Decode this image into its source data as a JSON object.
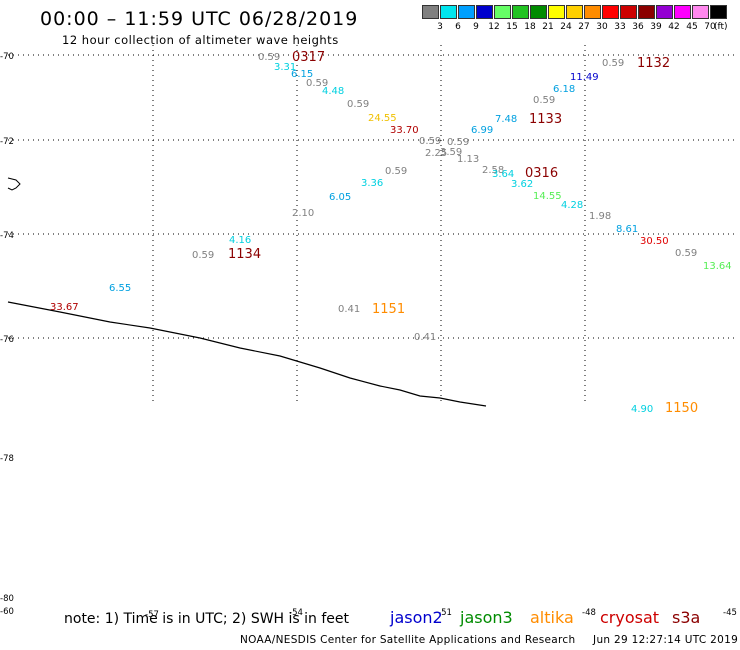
{
  "header": {
    "title": "00:00 – 11:59 UTC 06/28/2019",
    "subtitle": "12 hour collection of altimeter wave heights"
  },
  "legend": {
    "unit": "(ft)",
    "bins": [
      {
        "label": "3",
        "color": "#808080"
      },
      {
        "label": "6",
        "color": "#00e5ee"
      },
      {
        "label": "9",
        "color": "#00a0ff"
      },
      {
        "label": "12",
        "color": "#0000cd"
      },
      {
        "label": "15",
        "color": "#66ff66"
      },
      {
        "label": "18",
        "color": "#22c322"
      },
      {
        "label": "21",
        "color": "#008b00"
      },
      {
        "label": "24",
        "color": "#ffff00"
      },
      {
        "label": "27",
        "color": "#ffd000"
      },
      {
        "label": "30",
        "color": "#ff8c00"
      },
      {
        "label": "33",
        "color": "#ff0000"
      },
      {
        "label": "36",
        "color": "#cd0000"
      },
      {
        "label": "39",
        "color": "#8b0000"
      },
      {
        "label": "42",
        "color": "#9400d3"
      },
      {
        "label": "45",
        "color": "#ff00ff"
      },
      {
        "label": "70",
        "color": "#ff88ee"
      },
      {
        "label": "",
        "color": "#000000"
      }
    ]
  },
  "map": {
    "lat_labels": [
      "-70",
      "-72",
      "-74",
      "-76",
      "-78",
      "-80"
    ],
    "lon_labels": [
      "-60",
      "-57",
      "-54",
      "-51",
      "-48",
      "-45"
    ],
    "pass_labels": [
      {
        "text": "0317",
        "color": "#8b0000"
      },
      {
        "text": "1132",
        "color": "#8b0000"
      },
      {
        "text": "1133",
        "color": "#8b0000"
      },
      {
        "text": "0316",
        "color": "#8b0000"
      },
      {
        "text": "1134",
        "color": "#8b0000"
      },
      {
        "text": "1151",
        "color": "#ff8c00"
      },
      {
        "text": "1150",
        "color": "#ff8c00"
      }
    ],
    "values": [
      {
        "text": "0.59",
        "color": "#808080"
      },
      {
        "text": "3.31",
        "color": "#00d0e0"
      },
      {
        "text": "6.15",
        "color": "#00a0e0"
      },
      {
        "text": "0.59",
        "color": "#808080"
      },
      {
        "text": "4.48",
        "color": "#00d0e0"
      },
      {
        "text": "0.59",
        "color": "#808080"
      },
      {
        "text": "24.55",
        "color": "#f0c000"
      },
      {
        "text": "33.70",
        "color": "#b00000"
      },
      {
        "text": "0.59",
        "color": "#808080"
      },
      {
        "text": "0.59",
        "color": "#808080"
      },
      {
        "text": "2.25",
        "color": "#808080"
      },
      {
        "text": "3.59",
        "color": "#808080"
      },
      {
        "text": "1.13",
        "color": "#808080"
      },
      {
        "text": "6.99",
        "color": "#00a0e0"
      },
      {
        "text": "7.48",
        "color": "#00a0e0"
      },
      {
        "text": "0.59",
        "color": "#808080"
      },
      {
        "text": "6.18",
        "color": "#00a0e0"
      },
      {
        "text": "11.49",
        "color": "#0000cd"
      },
      {
        "text": "0.59",
        "color": "#808080"
      },
      {
        "text": "0.59",
        "color": "#808080"
      },
      {
        "text": "3.36",
        "color": "#00d0e0"
      },
      {
        "text": "6.05",
        "color": "#00a0e0"
      },
      {
        "text": "2.10",
        "color": "#808080"
      },
      {
        "text": "2.58",
        "color": "#808080"
      },
      {
        "text": "3.64",
        "color": "#00d0e0"
      },
      {
        "text": "3.62",
        "color": "#00d0e0"
      },
      {
        "text": "14.55",
        "color": "#55ee55"
      },
      {
        "text": "4.28",
        "color": "#00d0e0"
      },
      {
        "text": "1.98",
        "color": "#808080"
      },
      {
        "text": "8.61",
        "color": "#00a0e0"
      },
      {
        "text": "30.50",
        "color": "#e00000"
      },
      {
        "text": "0.59",
        "color": "#808080"
      },
      {
        "text": "13.64",
        "color": "#55ee55"
      },
      {
        "text": "4.16",
        "color": "#00d0e0"
      },
      {
        "text": "0.59",
        "color": "#808080"
      },
      {
        "text": "6.55",
        "color": "#00a0e0"
      },
      {
        "text": "33.67",
        "color": "#b00000"
      },
      {
        "text": "0.41",
        "color": "#808080"
      },
      {
        "text": "0.41",
        "color": "#808080"
      },
      {
        "text": "4.90",
        "color": "#00d0e0"
      }
    ]
  },
  "footer": {
    "note": "note: 1) Time is in UTC; 2) SWH is in feet",
    "satellites": [
      {
        "name": "jason2",
        "color": "#0000cd"
      },
      {
        "name": "jason3",
        "color": "#008b00"
      },
      {
        "name": "altika",
        "color": "#ff8c00"
      },
      {
        "name": "cryosat",
        "color": "#cd0000"
      },
      {
        "name": "s3a",
        "color": "#8b0000"
      }
    ],
    "credit": "NOAA/NESDIS Center for Satellite Applications and Research",
    "timestamp": "Jun 29 12:27:14 UTC 2019"
  }
}
